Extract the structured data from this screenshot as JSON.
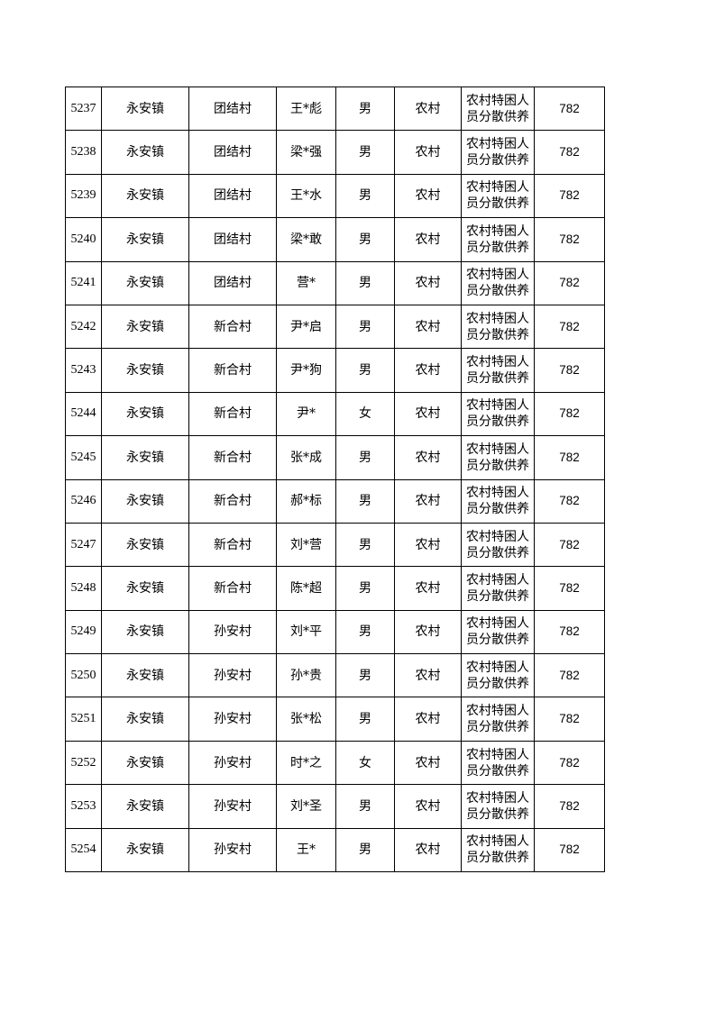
{
  "table": {
    "rows": [
      [
        "5237",
        "永安镇",
        "团结村",
        "王*彪",
        "男",
        "农村",
        "农村特困人员分散供养",
        "782"
      ],
      [
        "5238",
        "永安镇",
        "团结村",
        "梁*强",
        "男",
        "农村",
        "农村特困人员分散供养",
        "782"
      ],
      [
        "5239",
        "永安镇",
        "团结村",
        "王*水",
        "男",
        "农村",
        "农村特困人员分散供养",
        "782"
      ],
      [
        "5240",
        "永安镇",
        "团结村",
        "梁*敢",
        "男",
        "农村",
        "农村特困人员分散供养",
        "782"
      ],
      [
        "5241",
        "永安镇",
        "团结村",
        "营*",
        "男",
        "农村",
        "农村特困人员分散供养",
        "782"
      ],
      [
        "5242",
        "永安镇",
        "新合村",
        "尹*启",
        "男",
        "农村",
        "农村特困人员分散供养",
        "782"
      ],
      [
        "5243",
        "永安镇",
        "新合村",
        "尹*狗",
        "男",
        "农村",
        "农村特困人员分散供养",
        "782"
      ],
      [
        "5244",
        "永安镇",
        "新合村",
        "尹*",
        "女",
        "农村",
        "农村特困人员分散供养",
        "782"
      ],
      [
        "5245",
        "永安镇",
        "新合村",
        "张*成",
        "男",
        "农村",
        "农村特困人员分散供养",
        "782"
      ],
      [
        "5246",
        "永安镇",
        "新合村",
        "郝*标",
        "男",
        "农村",
        "农村特困人员分散供养",
        "782"
      ],
      [
        "5247",
        "永安镇",
        "新合村",
        "刘*营",
        "男",
        "农村",
        "农村特困人员分散供养",
        "782"
      ],
      [
        "5248",
        "永安镇",
        "新合村",
        "陈*超",
        "男",
        "农村",
        "农村特困人员分散供养",
        "782"
      ],
      [
        "5249",
        "永安镇",
        "孙安村",
        "刘*平",
        "男",
        "农村",
        "农村特困人员分散供养",
        "782"
      ],
      [
        "5250",
        "永安镇",
        "孙安村",
        "孙*贵",
        "男",
        "农村",
        "农村特困人员分散供养",
        "782"
      ],
      [
        "5251",
        "永安镇",
        "孙安村",
        "张*松",
        "男",
        "农村",
        "农村特困人员分散供养",
        "782"
      ],
      [
        "5252",
        "永安镇",
        "孙安村",
        "时*之",
        "女",
        "农村",
        "农村特困人员分散供养",
        "782"
      ],
      [
        "5253",
        "永安镇",
        "孙安村",
        "刘*圣",
        "男",
        "农村",
        "农村特困人员分散供养",
        "782"
      ],
      [
        "5254",
        "永安镇",
        "孙安村",
        "王*",
        "男",
        "农村",
        "农村特困人员分散供养",
        "782"
      ]
    ]
  }
}
